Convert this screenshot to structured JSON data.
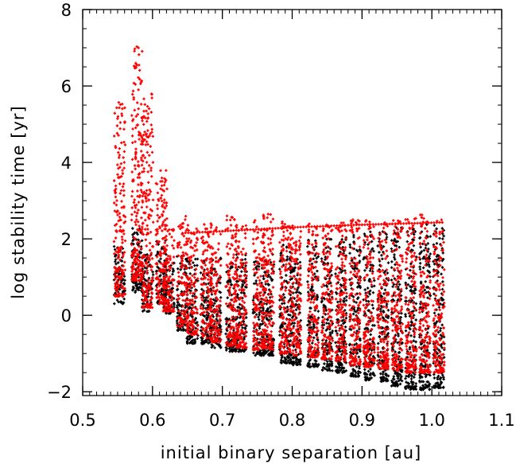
{
  "chart_data": {
    "type": "scatter",
    "title": "",
    "xlabel": "initial binary separation [au]",
    "ylabel": "log stability time [yr]",
    "xlim": [
      0.5,
      1.1
    ],
    "ylim": [
      -2.1,
      8.0
    ],
    "x_ticks": [
      0.5,
      0.6,
      0.7,
      0.8,
      0.9,
      1.0,
      1.1
    ],
    "x_tick_labels": [
      "0.5",
      "0.6",
      "0.7",
      "0.8",
      "0.9",
      "1.0",
      "1.1"
    ],
    "y_ticks": [
      -2,
      0,
      2,
      4,
      6,
      8
    ],
    "y_tick_labels": [
      "−2",
      "0",
      "2",
      "4",
      "6",
      "8"
    ],
    "grid": false,
    "legend": "none",
    "series": [
      {
        "color": "#000000",
        "marker": "small plus",
        "columns": [
          {
            "x": 0.553,
            "ymin": 0.3,
            "ymax": 1.8
          },
          {
            "x": 0.578,
            "ymin": 0.6,
            "ymax": 2.3
          },
          {
            "x": 0.593,
            "ymin": 0.1,
            "ymax": 1.6
          },
          {
            "x": 0.613,
            "ymin": 0.3,
            "ymax": 2.0
          },
          {
            "x": 0.623,
            "ymin": 0.05,
            "ymax": 1.4
          },
          {
            "x": 0.643,
            "ymin": -0.4,
            "ymax": 1.6
          },
          {
            "x": 0.657,
            "ymin": -0.75,
            "ymax": 1.5
          },
          {
            "x": 0.677,
            "ymin": -0.75,
            "ymax": 1.5
          },
          {
            "x": 0.69,
            "ymin": -0.85,
            "ymax": 1.5
          },
          {
            "x": 0.713,
            "ymin": -0.95,
            "ymax": 1.6
          },
          {
            "x": 0.727,
            "ymin": -0.95,
            "ymax": 1.6
          },
          {
            "x": 0.752,
            "ymin": -1.05,
            "ymax": 1.5
          },
          {
            "x": 0.766,
            "ymin": -1.05,
            "ymax": 1.6
          },
          {
            "x": 0.79,
            "ymin": -1.25,
            "ymax": 1.9
          },
          {
            "x": 0.805,
            "ymin": -1.3,
            "ymax": 1.8
          },
          {
            "x": 0.83,
            "ymin": -1.35,
            "ymax": 2.0
          },
          {
            "x": 0.85,
            "ymin": -1.45,
            "ymax": 2.0
          },
          {
            "x": 0.87,
            "ymin": -1.5,
            "ymax": 2.1
          },
          {
            "x": 0.89,
            "ymin": -1.6,
            "ymax": 2.1
          },
          {
            "x": 0.91,
            "ymin": -1.7,
            "ymax": 2.2
          },
          {
            "x": 0.93,
            "ymin": -1.75,
            "ymax": 2.2
          },
          {
            "x": 0.95,
            "ymin": -1.85,
            "ymax": 2.3
          },
          {
            "x": 0.97,
            "ymin": -1.95,
            "ymax": 2.3
          },
          {
            "x": 0.99,
            "ymin": -1.95,
            "ymax": 2.4
          },
          {
            "x": 1.01,
            "ymin": -1.9,
            "ymax": 2.4
          }
        ]
      },
      {
        "color": "#ff0000",
        "marker": "small plus",
        "columns": [
          {
            "x": 0.553,
            "ymin": 0.5,
            "ymax": 5.6
          },
          {
            "x": 0.578,
            "ymin": 0.9,
            "ymax": 7.05
          },
          {
            "x": 0.593,
            "ymin": 0.2,
            "ymax": 5.8
          },
          {
            "x": 0.613,
            "ymin": 0.3,
            "ymax": 3.8
          },
          {
            "x": 0.623,
            "ymin": 0.1,
            "ymax": 2.3
          },
          {
            "x": 0.643,
            "ymin": -0.3,
            "ymax": 2.6
          },
          {
            "x": 0.657,
            "ymin": -0.5,
            "ymax": 2.3
          },
          {
            "x": 0.677,
            "ymin": -0.6,
            "ymax": 2.4
          },
          {
            "x": 0.69,
            "ymin": -0.7,
            "ymax": 2.3
          },
          {
            "x": 0.713,
            "ymin": -0.8,
            "ymax": 2.6
          },
          {
            "x": 0.727,
            "ymin": -0.85,
            "ymax": 2.4
          },
          {
            "x": 0.752,
            "ymin": -0.9,
            "ymax": 2.5
          },
          {
            "x": 0.766,
            "ymin": -0.9,
            "ymax": 2.7
          },
          {
            "x": 0.79,
            "ymin": -1.0,
            "ymax": 2.5
          },
          {
            "x": 0.805,
            "ymin": -1.05,
            "ymax": 2.4
          },
          {
            "x": 0.83,
            "ymin": -1.1,
            "ymax": 2.4
          },
          {
            "x": 0.85,
            "ymin": -1.15,
            "ymax": 2.4
          },
          {
            "x": 0.87,
            "ymin": -1.2,
            "ymax": 2.5
          },
          {
            "x": 0.89,
            "ymin": -1.3,
            "ymax": 2.5
          },
          {
            "x": 0.91,
            "ymin": -1.35,
            "ymax": 2.5
          },
          {
            "x": 0.93,
            "ymin": -1.4,
            "ymax": 2.5
          },
          {
            "x": 0.95,
            "ymin": -1.45,
            "ymax": 2.5
          },
          {
            "x": 0.97,
            "ymin": -1.5,
            "ymax": 2.6
          },
          {
            "x": 0.99,
            "ymin": -1.5,
            "ymax": 2.7
          },
          {
            "x": 1.01,
            "ymin": -1.5,
            "ymax": 2.5
          }
        ],
        "ceiling_line": [
          {
            "x": 0.643,
            "y": 2.15
          },
          {
            "x": 0.7,
            "y": 2.2
          },
          {
            "x": 0.8,
            "y": 2.3
          },
          {
            "x": 0.9,
            "y": 2.37
          },
          {
            "x": 1.015,
            "y": 2.43
          }
        ]
      }
    ]
  }
}
